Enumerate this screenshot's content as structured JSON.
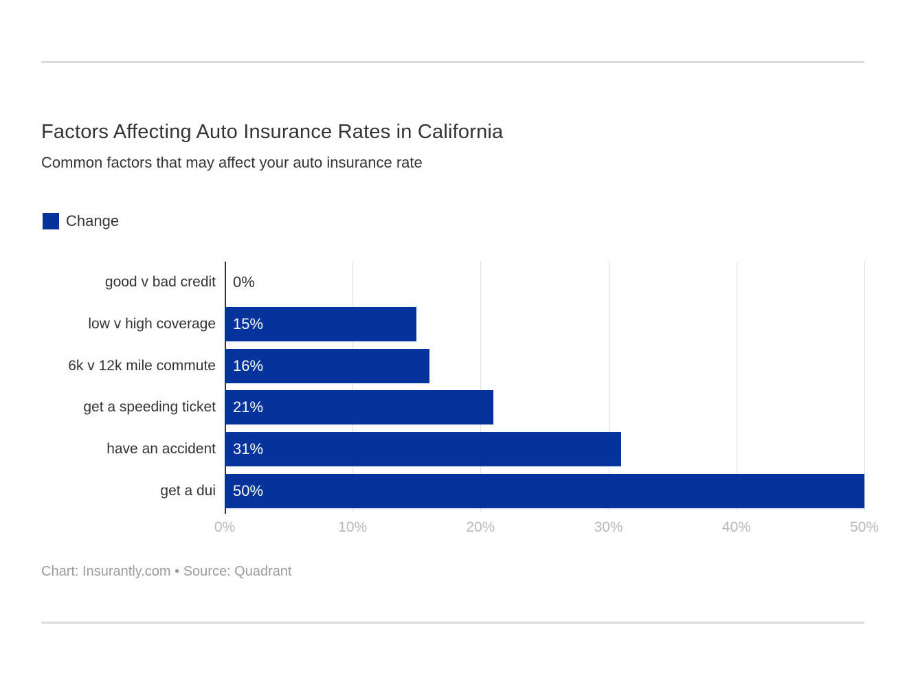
{
  "header": {
    "title": "Factors Affecting Auto Insurance Rates in California",
    "subtitle": "Common factors that may affect your auto insurance rate"
  },
  "legend": {
    "label": "Change",
    "swatch_color": "#04339b"
  },
  "chart_data": {
    "type": "bar",
    "orientation": "horizontal",
    "title": "Factors Affecting Auto Insurance Rates in California",
    "subtitle": "Common factors that may affect your auto insurance rate",
    "series_name": "Change",
    "categories": [
      "good v bad credit",
      "low v high coverage",
      "6k v 12k mile commute",
      "get a speeding ticket",
      "have an accident",
      "get a dui"
    ],
    "values": [
      0,
      15,
      16,
      21,
      31,
      50
    ],
    "value_labels": [
      "0%",
      "15%",
      "16%",
      "21%",
      "31%",
      "50%"
    ],
    "x_ticks": [
      "0%",
      "10%",
      "20%",
      "30%",
      "40%",
      "50%"
    ],
    "x_tick_values": [
      0,
      10,
      20,
      30,
      40,
      50
    ],
    "xlim": [
      0,
      50
    ],
    "grid": true,
    "bar_color": "#04339b",
    "legend_position": "top-left"
  },
  "footer": {
    "credit": "Chart: Insurantly.com • Source: Quadrant"
  }
}
